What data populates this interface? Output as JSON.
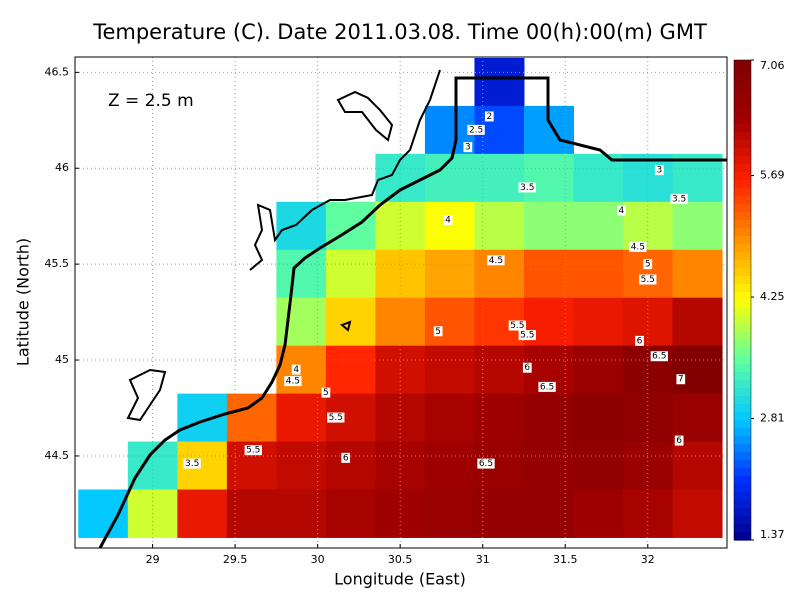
{
  "chart_data": {
    "type": "heatmap",
    "title": "Temperature (C). Date 2011.03.08. Time 00(h):00(m) GMT",
    "annotation": "Z = 2.5 m",
    "x_label": "Longitude (East)",
    "y_label": "Latitude (North)",
    "xlim": [
      28.53,
      32.48
    ],
    "ylim": [
      44.02,
      46.58
    ],
    "xticks": [
      29,
      29.5,
      30,
      30.5,
      31,
      31.5,
      32
    ],
    "yticks": [
      44.5,
      45,
      45.5,
      46,
      46.5
    ],
    "grid": true,
    "x": [
      28.7,
      29.0,
      29.3,
      29.6,
      29.9,
      30.2,
      30.5,
      30.8,
      31.1,
      31.4,
      31.7,
      32.0,
      32.3
    ],
    "y": [
      46.45,
      46.2,
      45.95,
      45.7,
      45.45,
      45.2,
      44.95,
      44.7,
      44.45,
      44.2
    ],
    "z": [
      [
        null,
        null,
        null,
        null,
        null,
        null,
        null,
        null,
        1.8,
        null,
        null,
        null,
        null
      ],
      [
        null,
        null,
        null,
        null,
        null,
        null,
        null,
        2.5,
        2.2,
        2.6,
        null,
        null,
        null
      ],
      [
        null,
        null,
        null,
        null,
        null,
        null,
        3.2,
        3.3,
        3.3,
        3.4,
        3.2,
        3.1,
        3.2
      ],
      [
        null,
        null,
        null,
        null,
        3.0,
        3.5,
        4.0,
        4.2,
        3.9,
        3.7,
        3.7,
        3.9,
        3.7
      ],
      [
        null,
        null,
        null,
        null,
        3.4,
        4.0,
        4.6,
        4.8,
        5.0,
        5.3,
        5.3,
        5.2,
        5.0
      ],
      [
        null,
        null,
        null,
        null,
        3.8,
        4.5,
        5.0,
        5.3,
        5.5,
        5.7,
        5.8,
        5.9,
        6.2
      ],
      [
        null,
        null,
        null,
        null,
        5.0,
        5.6,
        6.0,
        6.1,
        6.2,
        6.3,
        6.5,
        6.8,
        7.0
      ],
      [
        null,
        null,
        2.9,
        5.2,
        5.8,
        6.0,
        6.2,
        6.3,
        6.4,
        6.6,
        6.8,
        6.7,
        6.5
      ],
      [
        null,
        3.2,
        4.5,
        6.0,
        6.1,
        6.2,
        6.3,
        6.4,
        6.5,
        6.6,
        6.7,
        6.5,
        6.2
      ],
      [
        2.8,
        4.0,
        5.8,
        6.2,
        6.2,
        6.3,
        6.4,
        6.5,
        6.6,
        6.6,
        6.4,
        6.3,
        6.1
      ]
    ],
    "clim": [
      1.37,
      7.06
    ],
    "colorbar_ticks": [
      1.37,
      2.81,
      4.25,
      5.69,
      7.06
    ],
    "colormap": [
      "#00008f",
      "#0030ff",
      "#00c8ff",
      "#60ffa0",
      "#ffff00",
      "#ff9000",
      "#ff2000",
      "#a00000",
      "#800000"
    ],
    "contour_labels": [
      {
        "x": 31.04,
        "y": 46.27,
        "value": 2
      },
      {
        "x": 30.96,
        "y": 46.2,
        "value": 2.5
      },
      {
        "x": 30.91,
        "y": 46.11,
        "value": 3
      },
      {
        "x": 32.07,
        "y": 45.99,
        "value": 3
      },
      {
        "x": 31.27,
        "y": 45.9,
        "value": 3.5
      },
      {
        "x": 32.19,
        "y": 45.84,
        "value": 3.5
      },
      {
        "x": 30.79,
        "y": 45.73,
        "value": 4
      },
      {
        "x": 31.84,
        "y": 45.78,
        "value": 4
      },
      {
        "x": 31.94,
        "y": 45.59,
        "value": 4.5
      },
      {
        "x": 31.08,
        "y": 45.52,
        "value": 4.5
      },
      {
        "x": 32.0,
        "y": 45.5,
        "value": 5
      },
      {
        "x": 32.0,
        "y": 45.42,
        "value": 5.5
      },
      {
        "x": 31.21,
        "y": 45.18,
        "value": 5.5
      },
      {
        "x": 31.27,
        "y": 45.13,
        "value": 5.5
      },
      {
        "x": 30.73,
        "y": 45.15,
        "value": 5
      },
      {
        "x": 31.95,
        "y": 45.1,
        "value": 6
      },
      {
        "x": 32.07,
        "y": 45.02,
        "value": 6.5
      },
      {
        "x": 31.27,
        "y": 44.96,
        "value": 6
      },
      {
        "x": 31.39,
        "y": 44.86,
        "value": 6.5
      },
      {
        "x": 32.2,
        "y": 44.9,
        "value": 7
      },
      {
        "x": 29.87,
        "y": 44.95,
        "value": 4
      },
      {
        "x": 29.85,
        "y": 44.89,
        "value": 4.5
      },
      {
        "x": 30.05,
        "y": 44.83,
        "value": 5
      },
      {
        "x": 30.11,
        "y": 44.7,
        "value": 5.5
      },
      {
        "x": 29.61,
        "y": 44.53,
        "value": 5.5
      },
      {
        "x": 30.17,
        "y": 44.49,
        "value": 6
      },
      {
        "x": 32.19,
        "y": 44.58,
        "value": 6
      },
      {
        "x": 29.24,
        "y": 44.46,
        "value": 3.5
      },
      {
        "x": 31.02,
        "y": 44.46,
        "value": 6.5
      }
    ]
  }
}
